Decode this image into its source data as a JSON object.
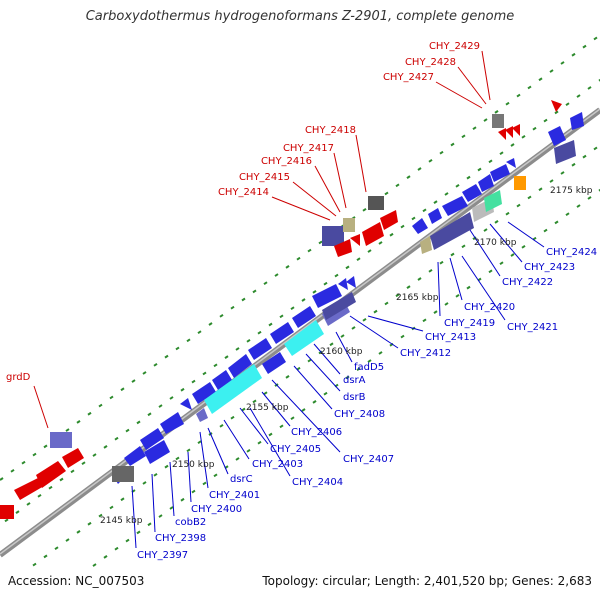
{
  "title": "Carboxydothermus hydrogenoformans Z-2901, complete genome",
  "footer": {
    "accession": "Accession: NC_007503",
    "summary": "Topology: circular; Length: 2,401,520 bp; Genes: 2,683"
  },
  "colors": {
    "forward_label": "#cc0000",
    "reverse_label": "#0000cc",
    "backbone": "#8c8c8c",
    "tick": "#2e8b2e"
  },
  "scale_labels": [
    "2145 kbp",
    "2150 kbp",
    "2155 kbp",
    "2160 kbp",
    "2165 kbp",
    "2170 kbp",
    "2175 kbp"
  ],
  "forward_genes": [
    "grdD",
    "CHY_2414",
    "CHY_2415",
    "CHY_2416",
    "CHY_2417",
    "CHY_2418",
    "CHY_2427",
    "CHY_2428",
    "CHY_2429"
  ],
  "reverse_genes": [
    "CHY_2397",
    "CHY_2398",
    "cobB2",
    "CHY_2400",
    "CHY_2401",
    "dsrC",
    "CHY_2403",
    "CHY_2404",
    "CHY_2405",
    "CHY_2406",
    "CHY_2407",
    "CHY_2408",
    "dsrB",
    "dsrA",
    "fadD5",
    "CHY_2412",
    "CHY_2413",
    "CHY_2419",
    "CHY_2420",
    "CHY_2421",
    "CHY_2422",
    "CHY_2423",
    "CHY_2424"
  ]
}
